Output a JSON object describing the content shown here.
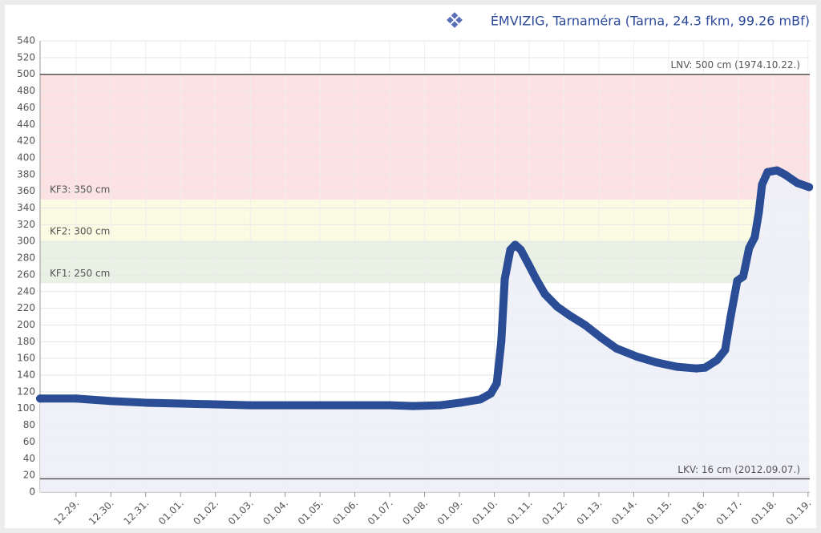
{
  "chart_data": {
    "type": "line",
    "title": "ÉMVIZIG, Tarnaméra (Tarna, 24.3 fkm, 99.26 mBf)",
    "xlim": [
      -1.03,
      21.05
    ],
    "xticks": [
      {
        "value": 0,
        "label": "12.29."
      },
      {
        "value": 1,
        "label": "12.30."
      },
      {
        "value": 2,
        "label": "12.31."
      },
      {
        "value": 3,
        "label": "01.01."
      },
      {
        "value": 4,
        "label": "01.02."
      },
      {
        "value": 5,
        "label": "01.03."
      },
      {
        "value": 6,
        "label": "01.04."
      },
      {
        "value": 7,
        "label": "01.05."
      },
      {
        "value": 8,
        "label": "01.06."
      },
      {
        "value": 9,
        "label": "01.07."
      },
      {
        "value": 10,
        "label": "01.08."
      },
      {
        "value": 11,
        "label": "01.09."
      },
      {
        "value": 12,
        "label": "01.10."
      },
      {
        "value": 13,
        "label": "01.11."
      },
      {
        "value": 14,
        "label": "01.12."
      },
      {
        "value": 15,
        "label": "01.13."
      },
      {
        "value": 16,
        "label": "01.14."
      },
      {
        "value": 17,
        "label": "01.15."
      },
      {
        "value": 18,
        "label": "01.16."
      },
      {
        "value": 19,
        "label": "01.17."
      },
      {
        "value": 20,
        "label": "01.18."
      },
      {
        "value": 21,
        "label": "01.19."
      }
    ],
    "ylim": [
      0,
      540
    ],
    "yticks": [
      0,
      20,
      40,
      60,
      80,
      100,
      120,
      140,
      160,
      180,
      200,
      220,
      240,
      260,
      280,
      300,
      320,
      340,
      360,
      380,
      400,
      420,
      440,
      460,
      480,
      500,
      520,
      540
    ],
    "grid": true,
    "bands": [
      {
        "label": "KF3: 350 cm",
        "from": 350,
        "to": 500,
        "color": "#fde2e4"
      },
      {
        "label": "KF2: 300 cm",
        "from": 300,
        "to": 350,
        "color": "#fbfbe3"
      },
      {
        "label": "KF1: 250 cm",
        "from": 250,
        "to": 300,
        "color": "#e9f1e4"
      }
    ],
    "plot_lines": [
      {
        "label": "LNV: 500 cm (1974.10.22.)",
        "value": 500
      },
      {
        "label": "LKV: 16 cm (2012.09.07.)",
        "value": 16
      }
    ],
    "series": [
      {
        "color": "#2a4d96",
        "x": [
          -1.03,
          0,
          1,
          2,
          3,
          4,
          5,
          7,
          9,
          9.66,
          10.46,
          11.03,
          11.6,
          11.9,
          12.07,
          12.2,
          12.3,
          12.46,
          12.6,
          12.76,
          12.99,
          13.2,
          13.45,
          13.8,
          14.14,
          14.6,
          15.06,
          15.5,
          16.1,
          16.67,
          17.24,
          17.8,
          18.05,
          18.39,
          18.62,
          18.78,
          18.97,
          19.14,
          19.31,
          19.47,
          19.59,
          19.68,
          19.84,
          20.11,
          20.34,
          20.69,
          21.03
        ],
        "values": [
          112,
          112,
          109,
          107,
          106,
          105,
          104,
          104,
          104,
          103,
          104,
          107,
          111,
          118,
          130,
          180,
          255,
          290,
          296,
          290,
          272,
          255,
          237,
          222,
          212,
          200,
          185,
          172,
          162,
          155,
          150,
          148,
          149,
          158,
          170,
          210,
          253,
          258,
          292,
          305,
          335,
          368,
          383,
          385,
          380,
          370,
          365
        ]
      }
    ]
  }
}
